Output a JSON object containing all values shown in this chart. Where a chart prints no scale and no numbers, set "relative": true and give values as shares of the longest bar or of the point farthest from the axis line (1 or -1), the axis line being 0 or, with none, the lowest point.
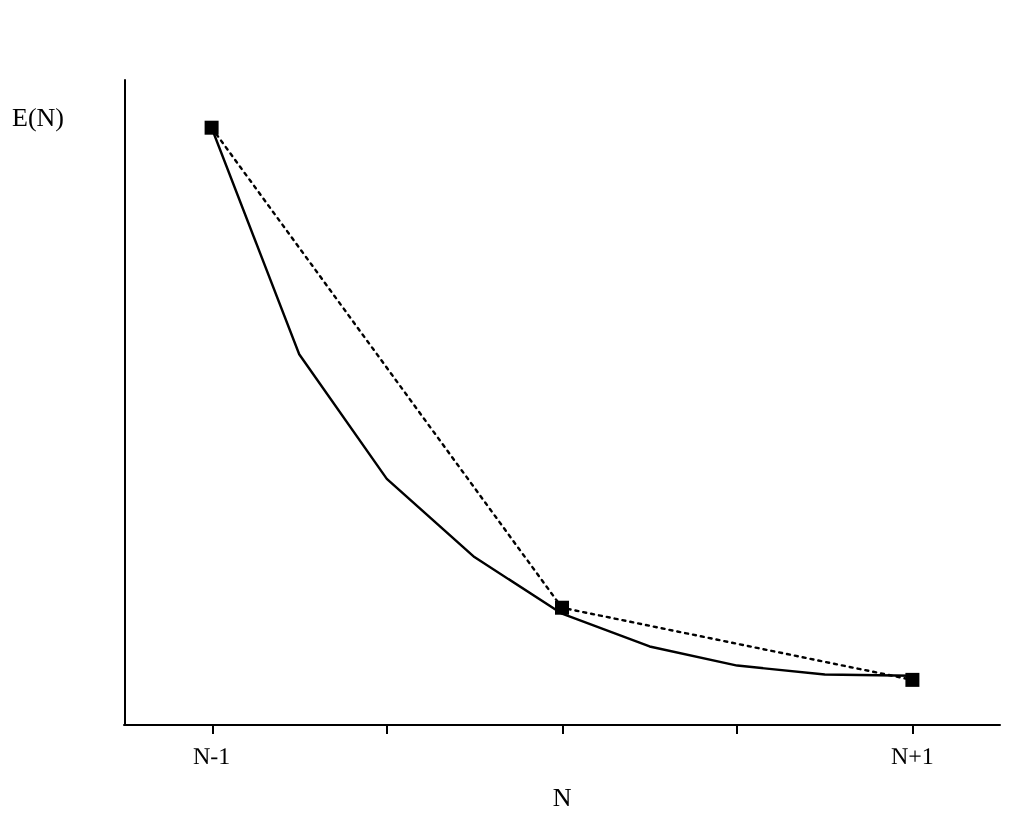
{
  "chart_data": {
    "type": "line",
    "relative": true,
    "xlabel": "N",
    "ylabel": "E(N)",
    "categories": [
      null,
      "N-1",
      null,
      null,
      null,
      null,
      null,
      null,
      null,
      "N+1",
      null
    ],
    "series": [
      {
        "color": "#000000",
        "line_style": "solid",
        "marker": "none",
        "values": [
          null,
          1,
          0.62,
          0.411,
          0.28,
          0.185,
          0.13,
          0.098,
          0.083,
          0.081,
          null
        ]
      },
      {
        "color": "#000000",
        "line_style": "dotted",
        "marker": "square",
        "values": [
          null,
          1,
          null,
          null,
          null,
          0.195,
          null,
          null,
          null,
          0.074,
          null
        ]
      }
    ],
    "grid": false
  }
}
